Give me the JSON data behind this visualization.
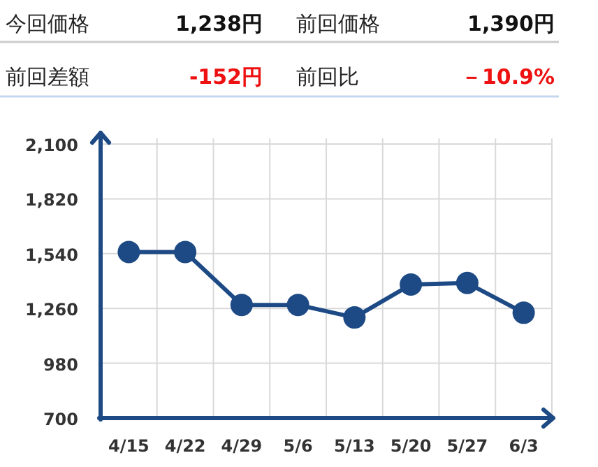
{
  "chart_data": [
    {
      "type": "other",
      "annotations": [
        "今回価格",
        "1,238円",
        "前回価格",
        "1,390円",
        "前回差額",
        "-152円",
        "前回比",
        "－10.9%"
      ],
      "colors": [
        "#222222",
        "#111111",
        "#222222",
        "#111111",
        "#222222",
        "#ee1111",
        "#222222",
        "#ee1111"
      ]
    },
    {
      "type": "line",
      "categories": [
        "4/15",
        "4/22",
        "4/29",
        "5/6",
        "5/13",
        "5/20",
        "5/27",
        "6/3"
      ],
      "series": [
        {
          "color": "#1d4a85",
          "values": [
            1548,
            1548,
            1278,
            1278,
            1214,
            1382,
            1390,
            1238
          ]
        }
      ],
      "ylim": [
        700,
        2100
      ],
      "yticks": [
        700,
        980,
        {
          "value": 1260,
          "label": "1,260"
        },
        {
          "value": 1540,
          "label": "1,540"
        },
        {
          "value": 1820,
          "label": "1,820"
        },
        {
          "value": 2100,
          "label": "2,100"
        }
      ],
      "grid": true,
      "marker": "circle"
    }
  ]
}
